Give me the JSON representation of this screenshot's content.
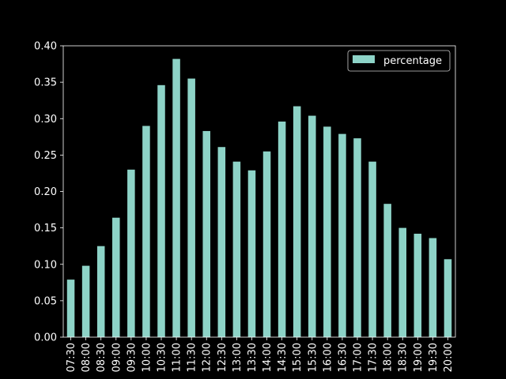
{
  "chart_data": {
    "type": "bar",
    "categories": [
      "07:30",
      "08:00",
      "08:30",
      "09:00",
      "09:30",
      "10:00",
      "10:30",
      "11:00",
      "11:30",
      "12:00",
      "12:30",
      "13:00",
      "13:30",
      "14:00",
      "14:30",
      "15:00",
      "15:30",
      "16:00",
      "16:30",
      "17:00",
      "17:30",
      "18:00",
      "18:30",
      "19:00",
      "19:30",
      "20:00"
    ],
    "series": [
      {
        "name": "percentage",
        "color": "#8dd3c7",
        "values": [
          0.079,
          0.098,
          0.125,
          0.164,
          0.23,
          0.29,
          0.346,
          0.382,
          0.355,
          0.283,
          0.261,
          0.241,
          0.229,
          0.255,
          0.296,
          0.317,
          0.304,
          0.289,
          0.279,
          0.273,
          0.241,
          0.183,
          0.15,
          0.142,
          0.136,
          0.107
        ]
      }
    ],
    "ylim": [
      0,
      0.4
    ],
    "yticks": [
      "0.00",
      "0.05",
      "0.10",
      "0.15",
      "0.20",
      "0.25",
      "0.30",
      "0.35",
      "0.40"
    ],
    "ytick_values": [
      0,
      0.05,
      0.1,
      0.15,
      0.2,
      0.25,
      0.3,
      0.35,
      0.4
    ],
    "legend": {
      "position": "top-right",
      "label": "percentage"
    },
    "grid": false,
    "background": "#000000",
    "axis_color": "#ffffff"
  }
}
